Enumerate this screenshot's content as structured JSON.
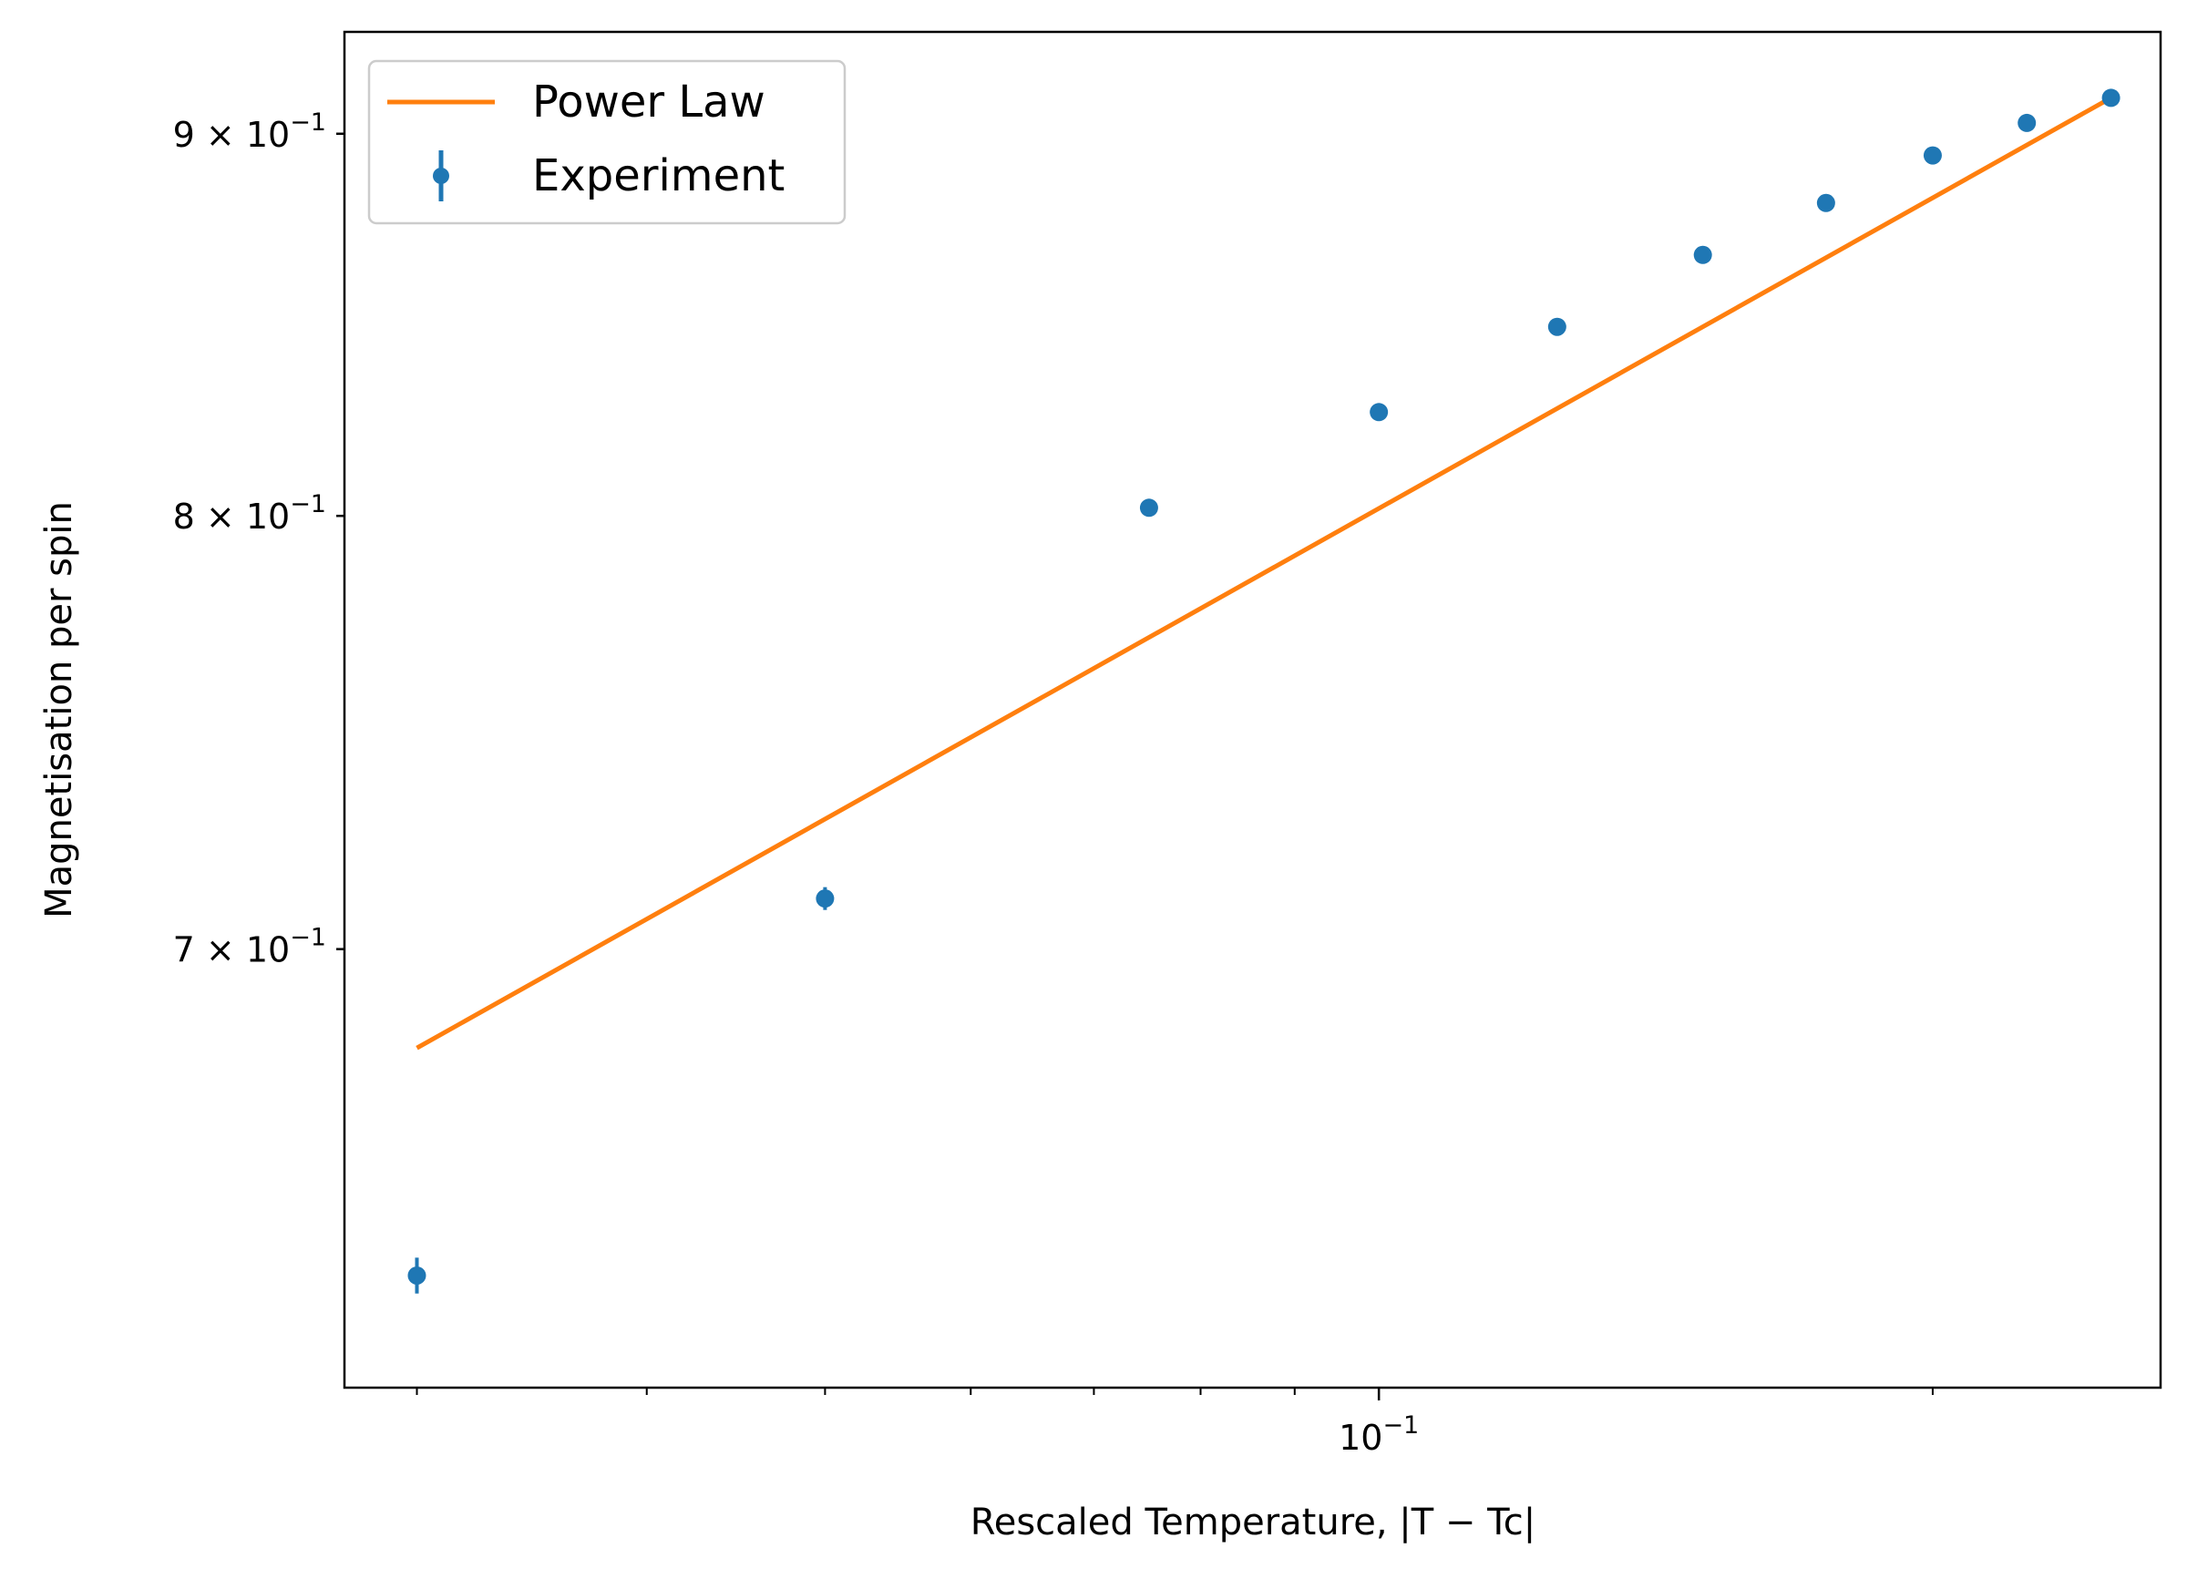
{
  "chart_data": {
    "type": "scatter",
    "xlabel": "Rescaled Temperature, |T − Tc|",
    "ylabel": "Magnetisation per spin",
    "xscale": "log",
    "yscale": "log",
    "xlim": [
      0.0274,
      0.266
    ],
    "ylim": [
      0.6115,
      0.9287
    ],
    "grid": false,
    "legend_location": "upper-left",
    "x_ticks": [
      {
        "value": 0.1,
        "label": "10",
        "exponent": "−1"
      }
    ],
    "y_ticks": [
      {
        "value": 0.7,
        "coefficient": "7",
        "label": "× 10",
        "exponent": "−1"
      },
      {
        "value": 0.8,
        "coefficient": "8",
        "label": "× 10",
        "exponent": "−1"
      },
      {
        "value": 0.9,
        "coefficient": "9",
        "label": "× 10",
        "exponent": "−1"
      }
    ],
    "series": [
      {
        "name": "Power Law",
        "kind": "line",
        "color": "#ff7f0e",
        "x": [
          0.03,
          0.25
        ],
        "y": [
          0.679,
          0.91
        ]
      },
      {
        "name": "Experiment",
        "kind": "errorbar",
        "color": "#1f77b4",
        "x": [
          0.03,
          0.05,
          0.075,
          0.1,
          0.125,
          0.15,
          0.175,
          0.2,
          0.225,
          0.25
        ],
        "y": [
          0.633,
          0.711,
          0.802,
          0.826,
          0.848,
          0.867,
          0.881,
          0.894,
          0.903,
          0.91
        ],
        "yerr": [
          0.0035,
          0.0025,
          0.001,
          0.001,
          0.001,
          0.001,
          0.001,
          0.001,
          0.001,
          0.001
        ]
      }
    ]
  }
}
